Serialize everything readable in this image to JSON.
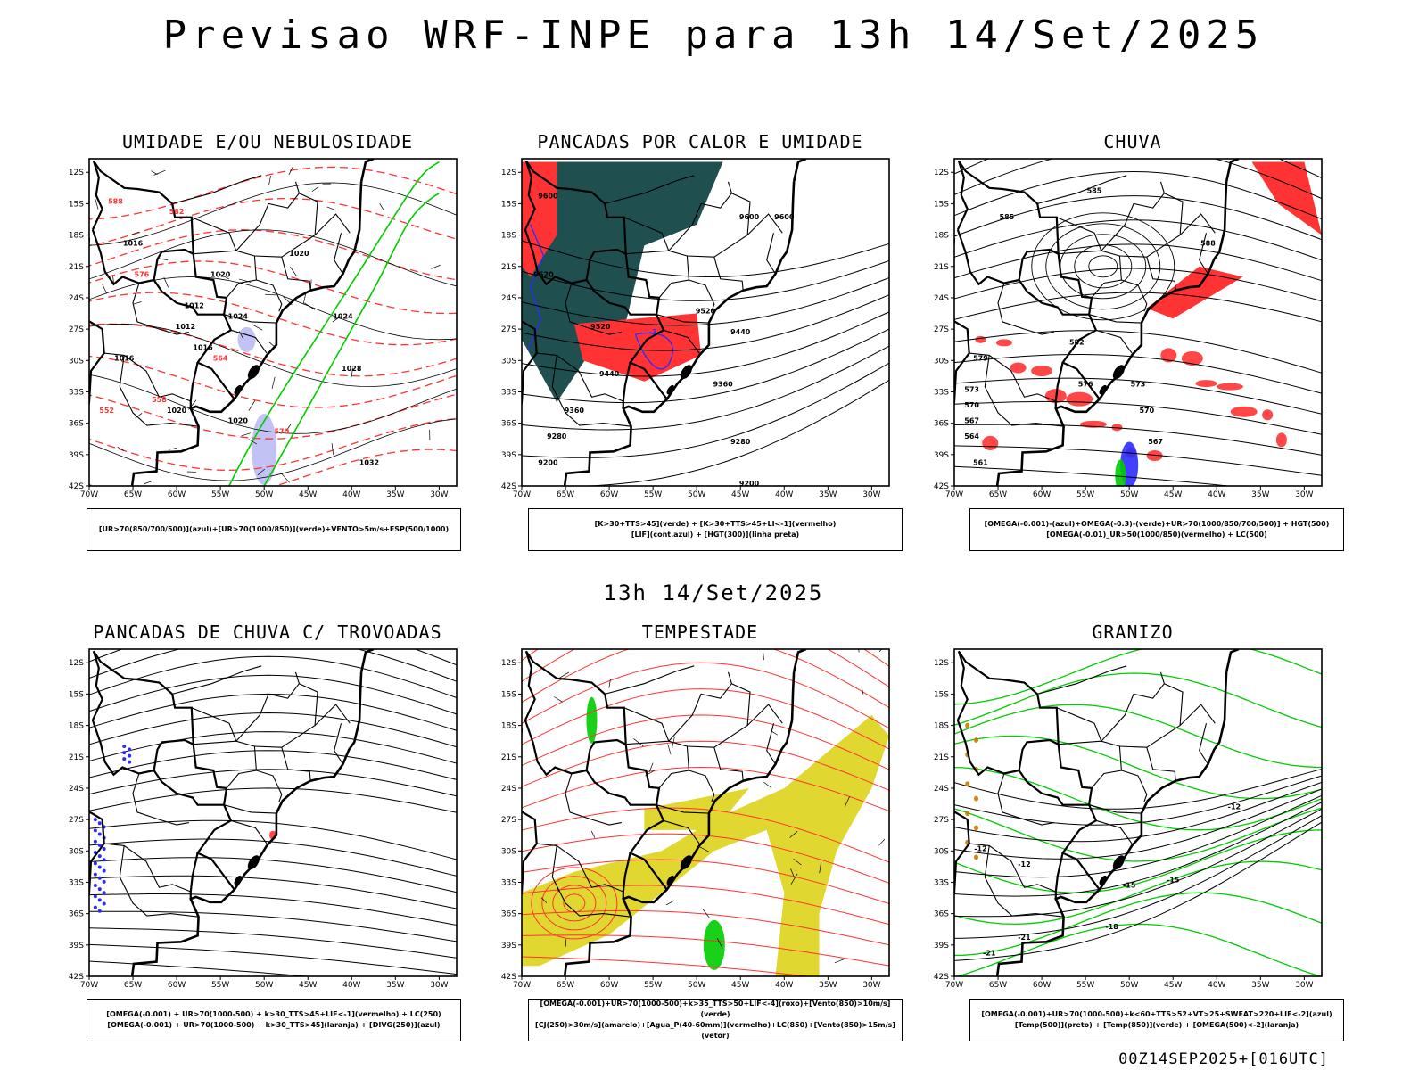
{
  "main_title": "Previsao WRF-INPE  para 13h 14/Set/2025",
  "mid_title": "13h 14/Set/2025",
  "footer": "00Z14SEP2025+[016UTC]",
  "axes": {
    "lat_labels": [
      "12S",
      "15S",
      "18S",
      "21S",
      "24S",
      "27S",
      "30S",
      "33S",
      "36S",
      "39S",
      "42S"
    ],
    "lon_labels": [
      "70W",
      "65W",
      "60W",
      "55W",
      "50W",
      "45W",
      "40W",
      "35W",
      "30W"
    ]
  },
  "colors": {
    "humidity_upper": "#2b2bff",
    "humidity_lower": "#00cc00",
    "instability": "#ff3333",
    "cloud_teal": "#1f4f4f",
    "jet_yellow": "#e0d830",
    "hail_orange": "#cc7a00"
  },
  "panels": [
    {
      "title": "UMIDADE E/OU NEBULOSIDADE",
      "legend": [
        "[UR>70(850/700/500)](azul)+[UR>70(1000/850)](verde)+VENTO>5m/s+ESP(500/1000)"
      ],
      "contour_labels": [
        "1016",
        "1020",
        "1024",
        "1028",
        "1032",
        "1012",
        "1016",
        "1020",
        "1020",
        "1012",
        "1016",
        "1020",
        "1024",
        "552",
        "558",
        "564",
        "570",
        "576",
        "582",
        "588"
      ]
    },
    {
      "title": "PANCADAS POR CALOR E UMIDADE",
      "legend": [
        "[K>30+TTS>45](verde) + [K>30+TTS>45+LI<-1](vermelho)",
        "[LIF](cont.azul) + [HGT(300)](linha preta)"
      ],
      "contour_labels": [
        "9600",
        "9600",
        "9600",
        "9520",
        "9520",
        "9520",
        "9440",
        "9440",
        "9360",
        "9360",
        "9280",
        "9280",
        "9200",
        "9200",
        "-3"
      ]
    },
    {
      "title": "CHUVA",
      "legend": [
        "[OMEGA(-0.001)-(azul)+OMEGA(-0.3)-(verde)+UR>70(1000/850/700/500)] + HGT(500)",
        "[OMEGA(-0.01)_UR>50(1000/850)(vermelho) + LC(500)"
      ],
      "contour_labels": [
        "585",
        "585",
        "582",
        "579",
        "576",
        "573",
        "570",
        "567",
        "564",
        "561",
        "588",
        "573",
        "570",
        "567"
      ]
    },
    {
      "title": "PANCADAS DE CHUVA C/ TROVOADAS",
      "legend": [
        "[OMEGA(-0.001) + UR>70(1000-500) + k>30_TTS>45+LIF<-1](vermelho) + LC(250)",
        "[OMEGA(-0.001) + UR>70(1000-500) + k>30_TTS>45](laranja) + [DIVG(250)](azul)"
      ]
    },
    {
      "title": "TEMPESTADE",
      "legend": [
        "[OMEGA(-0.001)+UR>70(1000-500)+k>35_TTS>50+LIF<-4](roxo)+[Vento(850)>10m/s](verde)",
        "[CJ(250)>30m/s](amarelo)+[Agua_P(40-60mm)](vermelho)+LC(850)+[Vento(850)>15m/s](vetor)"
      ]
    },
    {
      "title": "GRANIZO",
      "legend": [
        "[OMEGA(-0.001)+UR>70(1000-500)+k<60+TTS>52+VT>25+SWEAT>220+LIF<-2](azul)",
        "[Temp(500)](preto) + [Temp(850)](verde) + [OMEGA(500)<-2](laranja)"
      ],
      "contour_labels": [
        "-12",
        "-12",
        "-15",
        "-15",
        "-18",
        "-21",
        "-21",
        "-12"
      ]
    }
  ]
}
